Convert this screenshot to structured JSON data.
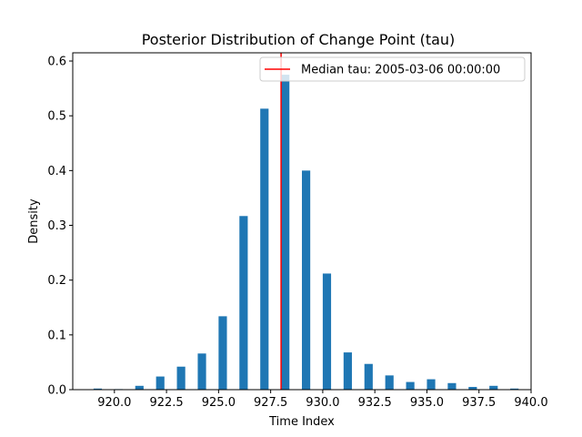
{
  "chart_data": {
    "type": "bar",
    "title": "Posterior Distribution of Change Point (tau)",
    "xlabel": "Time Index",
    "ylabel": "Density",
    "xlim": [
      918,
      940
    ],
    "ylim": [
      0,
      0.615
    ],
    "xticks": [
      920.0,
      922.5,
      925.0,
      927.5,
      930.0,
      932.5,
      935.0,
      937.5,
      940.0
    ],
    "xtick_labels": [
      "920.0",
      "922.5",
      "925.0",
      "927.5",
      "930.0",
      "932.5",
      "935.0",
      "937.5",
      "940.0"
    ],
    "yticks": [
      0.0,
      0.1,
      0.2,
      0.3,
      0.4,
      0.5,
      0.6
    ],
    "ytick_labels": [
      "0.0",
      "0.1",
      "0.2",
      "0.3",
      "0.4",
      "0.5",
      "0.6"
    ],
    "bar_width": 0.4,
    "bar_color": "#1f77b4",
    "bars": [
      {
        "x": 919.2,
        "value": 0.002
      },
      {
        "x": 920.2,
        "value": 0.001
      },
      {
        "x": 921.2,
        "value": 0.007
      },
      {
        "x": 922.2,
        "value": 0.024
      },
      {
        "x": 923.2,
        "value": 0.042
      },
      {
        "x": 924.2,
        "value": 0.066
      },
      {
        "x": 925.2,
        "value": 0.134
      },
      {
        "x": 926.2,
        "value": 0.317
      },
      {
        "x": 927.2,
        "value": 0.513
      },
      {
        "x": 928.2,
        "value": 0.575
      },
      {
        "x": 929.2,
        "value": 0.4
      },
      {
        "x": 930.2,
        "value": 0.212
      },
      {
        "x": 931.2,
        "value": 0.068
      },
      {
        "x": 932.2,
        "value": 0.047
      },
      {
        "x": 933.2,
        "value": 0.026
      },
      {
        "x": 934.2,
        "value": 0.014
      },
      {
        "x": 935.2,
        "value": 0.019
      },
      {
        "x": 936.2,
        "value": 0.012
      },
      {
        "x": 937.2,
        "value": 0.005
      },
      {
        "x": 938.2,
        "value": 0.007
      },
      {
        "x": 939.2,
        "value": 0.002
      }
    ],
    "vline": {
      "x": 928,
      "color": "#ff0000",
      "label": "Median tau: 2005-03-06 00:00:00"
    },
    "legend": {
      "position": "upper right",
      "entries": [
        "Median tau: 2005-03-06 00:00:00"
      ]
    },
    "grid": false
  }
}
